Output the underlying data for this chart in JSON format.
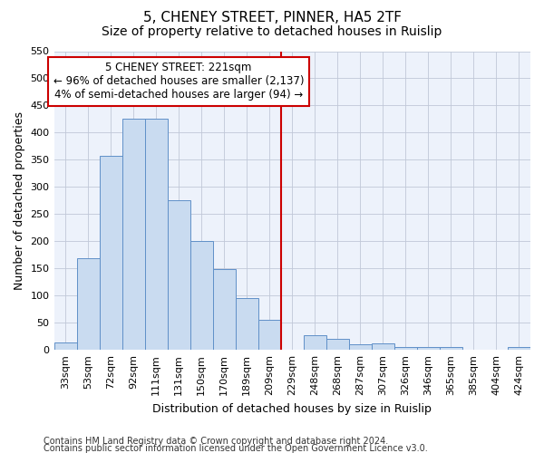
{
  "title1": "5, CHENEY STREET, PINNER, HA5 2TF",
  "title2": "Size of property relative to detached houses in Ruislip",
  "xlabel": "Distribution of detached houses by size in Ruislip",
  "ylabel": "Number of detached properties",
  "categories": [
    "33sqm",
    "53sqm",
    "72sqm",
    "92sqm",
    "111sqm",
    "131sqm",
    "150sqm",
    "170sqm",
    "189sqm",
    "209sqm",
    "229sqm",
    "248sqm",
    "268sqm",
    "287sqm",
    "307sqm",
    "326sqm",
    "346sqm",
    "365sqm",
    "385sqm",
    "404sqm",
    "424sqm"
  ],
  "bar_values": [
    14,
    168,
    357,
    425,
    425,
    275,
    200,
    148,
    95,
    55,
    0,
    27,
    20,
    11,
    12,
    6,
    5,
    5,
    1,
    0,
    5
  ],
  "bar_color": "#c9dbf0",
  "bar_edge_color": "#6090c8",
  "vline_color": "#cc0000",
  "annotation_line1": "5 CHENEY STREET: 221sqm",
  "annotation_line2": "← 96% of detached houses are smaller (2,137)",
  "annotation_line3": "4% of semi-detached houses are larger (94) →",
  "annotation_box_color": "#cc0000",
  "ylim": [
    0,
    550
  ],
  "yticks": [
    0,
    50,
    100,
    150,
    200,
    250,
    300,
    350,
    400,
    450,
    500,
    550
  ],
  "footer1": "Contains HM Land Registry data © Crown copyright and database right 2024.",
  "footer2": "Contains public sector information licensed under the Open Government Licence v3.0.",
  "bg_color": "#edf2fb",
  "title1_fontsize": 11,
  "title2_fontsize": 10,
  "xlabel_fontsize": 9,
  "ylabel_fontsize": 9,
  "tick_fontsize": 8,
  "annot_fontsize": 8.5,
  "footer_fontsize": 7
}
